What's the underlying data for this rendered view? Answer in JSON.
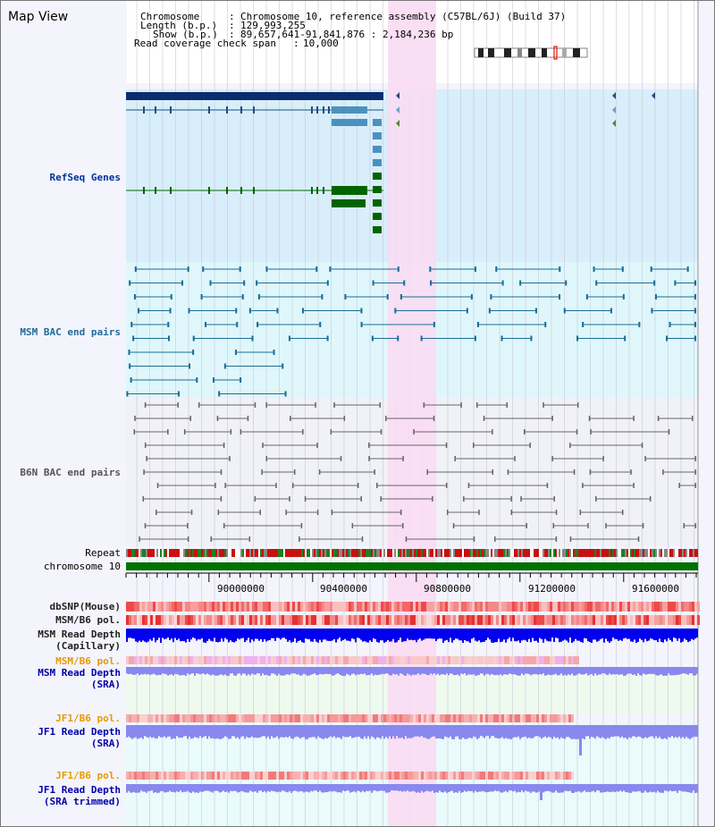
{
  "view_title": "Map View",
  "header": {
    "chromosome_key": "Chromosome",
    "chromosome_val": "Chromosome 10, reference assembly (C57BL/6J) (Build 37)",
    "length_key": "Length (b.p.)",
    "length_val": "129,993,255",
    "show_key": "Show (b.p.)",
    "show_val": "89,657,641-91,841,876 : 2,184,236 bp",
    "coverage_key": "Read coverage check span",
    "coverage_val": "10,000"
  },
  "tracks": {
    "refseq": "RefSeq Genes",
    "msm_bac": "MSM BAC end pairs",
    "b6n_bac": "B6N BAC end pairs",
    "repeat": "Repeat",
    "chromosome": "chromosome 10",
    "dbsnp": "dbSNP(Mouse)",
    "msm_b6_pol": "MSM/B6 pol.",
    "msm_depth_cap_1": "MSM Read Depth",
    "msm_depth_cap_2": "(Capillary)",
    "msm_b6_pol_2": "MSM/B6 pol.",
    "msm_depth_sra_1": "MSM Read Depth",
    "msm_depth_sra_2": "(SRA)",
    "jf1_b6_pol": "JF1/B6 pol.",
    "jf1_depth_sra_1": "JF1 Read Depth",
    "jf1_depth_sra_2": "(SRA)",
    "jf1_b6_pol_2": "JF1/B6 pol.",
    "jf1_depth_trim_1": "JF1 Read Depth",
    "jf1_depth_trim_2": "(SRA trimmed)"
  },
  "axis": {
    "ticks": [
      "90000000",
      "90400000",
      "90800000",
      "91200000",
      "91600000"
    ]
  },
  "colors": {
    "refseq_bg": "#d8eefa",
    "msm_bg": "#dff7fb",
    "highlight": "#f9dcf3",
    "refseq_blue": "#0b2d6e",
    "refseq_mid": "#4a92bd",
    "refseq_green": "#006400",
    "msm_line": "#1a6e96",
    "b6n_line": "#666666",
    "chrom_bar": "#007000",
    "depth_blue": "#0000ee",
    "sra_blue": "#8888ee"
  }
}
